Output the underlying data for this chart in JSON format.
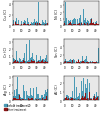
{
  "panels": [
    {
      "label": "Cu",
      "ylabel": "Cu (C)"
    },
    {
      "label": "Ni",
      "ylabel": "Ni (C)"
    },
    {
      "label": "Cr",
      "ylabel": "Cr (C)"
    },
    {
      "label": "Sn",
      "ylabel": "Sn (C)"
    },
    {
      "label": "Ag",
      "ylabel": "Ag (C)"
    },
    {
      "label": "Al",
      "ylabel": "Al (C)"
    }
  ],
  "n_groups": 45,
  "color_before": "#4a9ab5",
  "color_after": "#8b1515",
  "legend_before": "before treatment",
  "legend_after": "after treatment",
  "background": "#ffffff",
  "panel_bg": "#e8e8e8",
  "seeds": [
    10,
    20,
    30,
    40,
    50,
    60
  ]
}
